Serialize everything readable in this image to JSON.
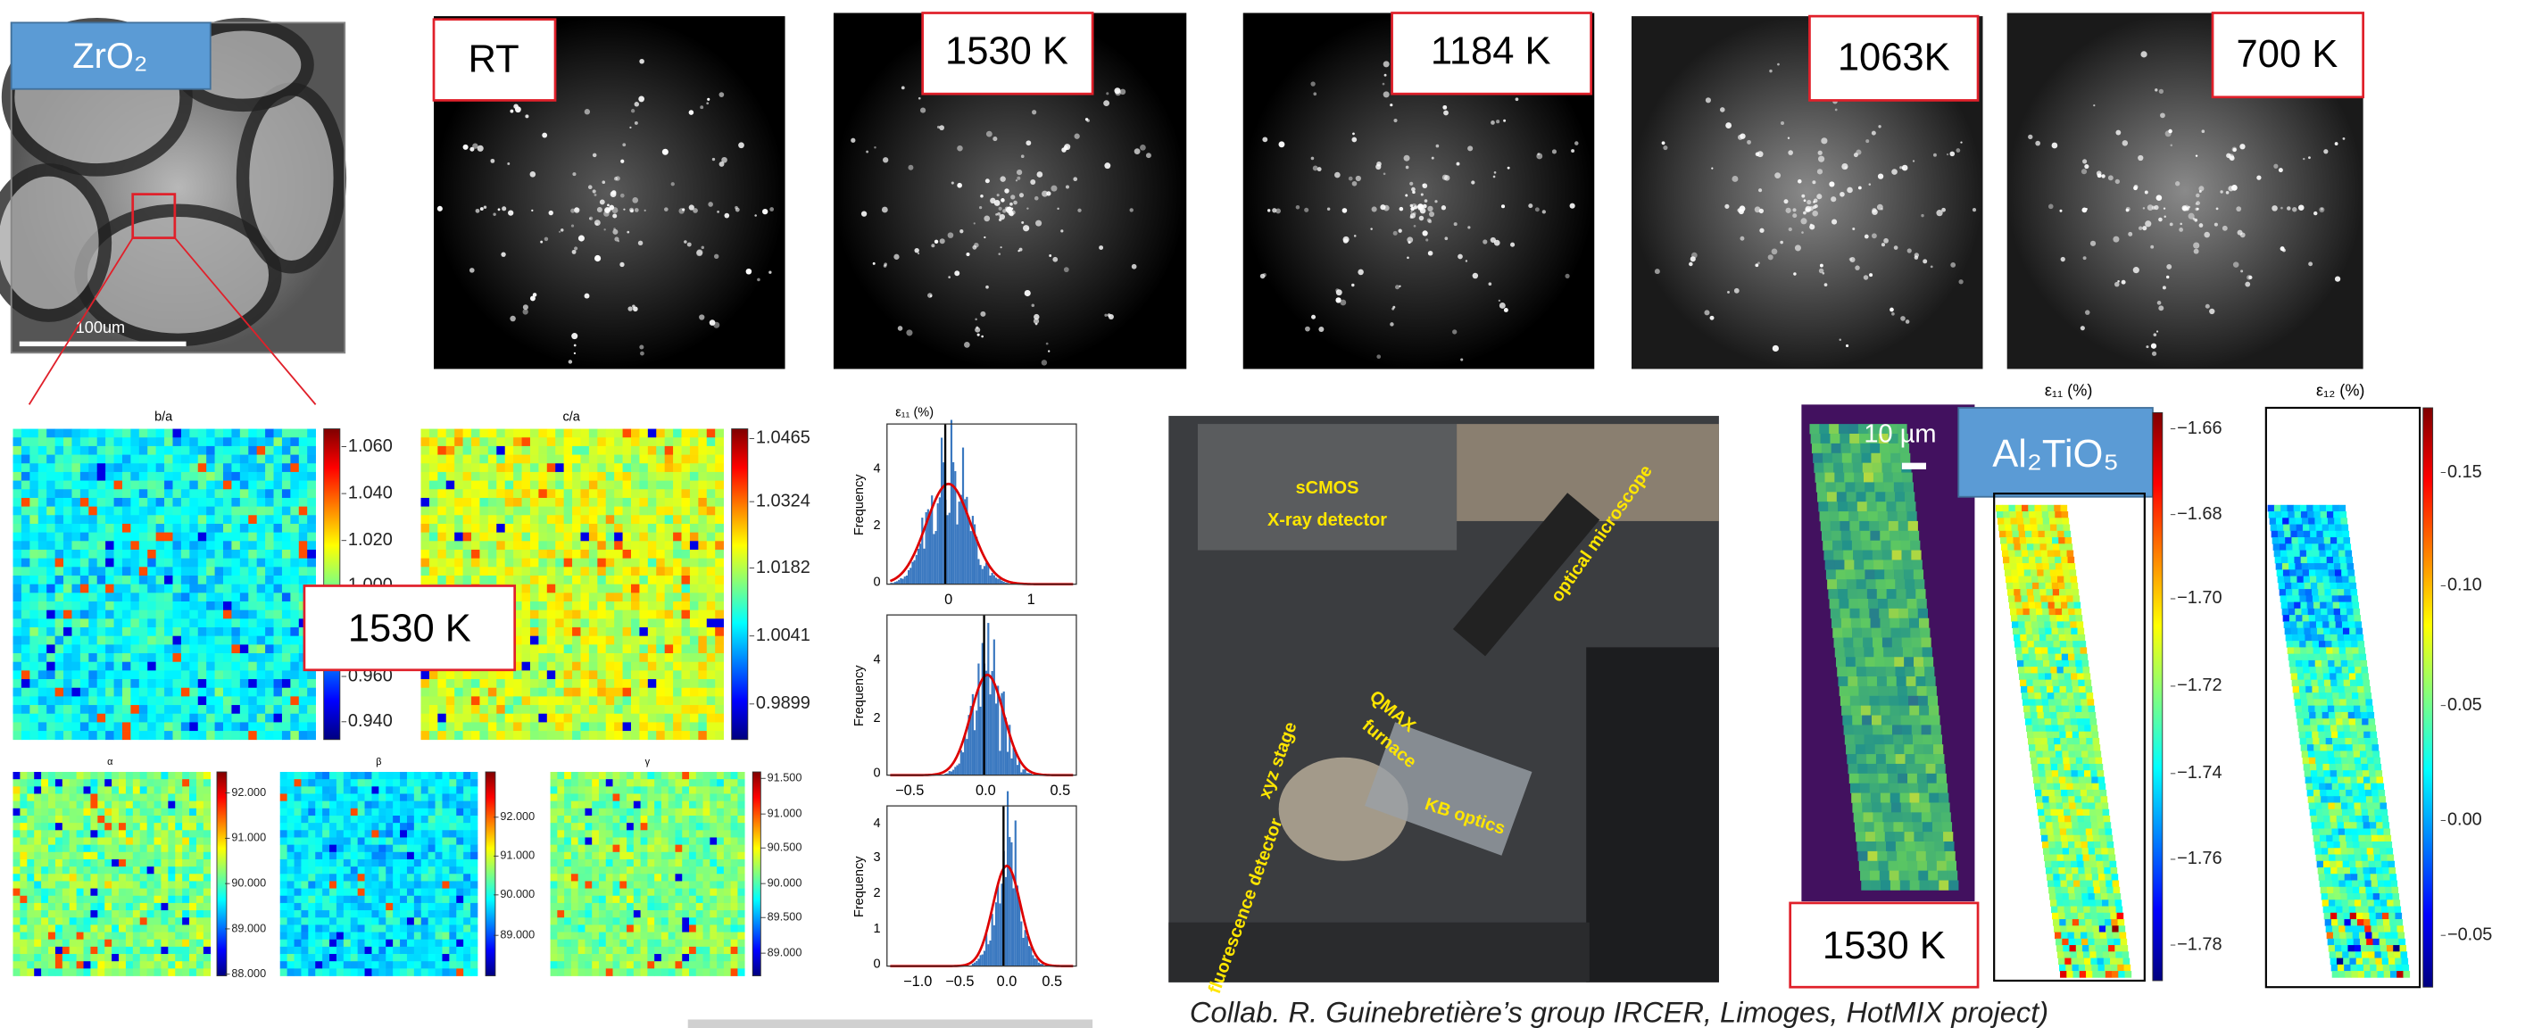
{
  "microscope": {
    "label": "ZrO₂",
    "scale_bar": "100um"
  },
  "patterns": [
    {
      "label": "RT"
    },
    {
      "label": "1530 K"
    },
    {
      "label": "1184 K"
    },
    {
      "label": "1063K"
    },
    {
      "label": "700 K"
    }
  ],
  "maps": {
    "ba": {
      "title": "b/a",
      "ticks": [
        "1.060",
        "1.040",
        "1.020",
        "1.000",
        "0.960",
        "0.940"
      ]
    },
    "ca": {
      "title": "c/a",
      "ticks": [
        "1.0465",
        "1.0324",
        "1.0182",
        "1.0041",
        "0.9899"
      ]
    },
    "overlay": "1530 K",
    "alpha": {
      "title": "α",
      "ticks": [
        "92.000",
        "91.000",
        "90.000",
        "89.000",
        "88.000"
      ]
    },
    "beta": {
      "title": "β",
      "ticks": [
        "92.000",
        "91.000",
        "90.000",
        "89.000"
      ]
    },
    "gamma": {
      "title": "γ",
      "ticks": [
        "91.500",
        "91.000",
        "90.500",
        "90.000",
        "89.500",
        "89.000"
      ]
    }
  },
  "histograms": {
    "title": "ε₁₁ (%)",
    "ylabel": "Frequency",
    "panels": [
      {
        "yticks": [
          "4",
          "2",
          "0"
        ],
        "xticks": [
          "0",
          "1"
        ]
      },
      {
        "yticks": [
          "4",
          "2",
          "0"
        ],
        "xticks": [
          "−0.5",
          "0.0",
          "0.5"
        ]
      },
      {
        "yticks": [
          "4",
          "3",
          "2",
          "1",
          "0"
        ],
        "xticks": [
          "−1.0",
          "−0.5",
          "0.0",
          "0.5"
        ]
      }
    ]
  },
  "photo": {
    "labels": [
      "sCMOS",
      "X-ray detector",
      "optical microscope",
      "xyz stage",
      "QMAX",
      "furnace",
      "KB optics",
      "fluorescence detector"
    ]
  },
  "sample": {
    "label": "Al₂TiO₅",
    "scale_bar": "10 µm",
    "temperature": "1530 K"
  },
  "strain11": {
    "title": "ε₁₁ (%)",
    "ticks": [
      "−1.66",
      "−1.68",
      "−1.70",
      "−1.72",
      "−1.74",
      "−1.76",
      "−1.78"
    ]
  },
  "strain12": {
    "title": "ε₁₂ (%)",
    "ticks": [
      "0.15",
      "0.10",
      "0.05",
      "0.00",
      "−0.05"
    ]
  },
  "caption": "Collab. R. Guinebretière’s group IRCER, Limoges, HotMIX project)"
}
